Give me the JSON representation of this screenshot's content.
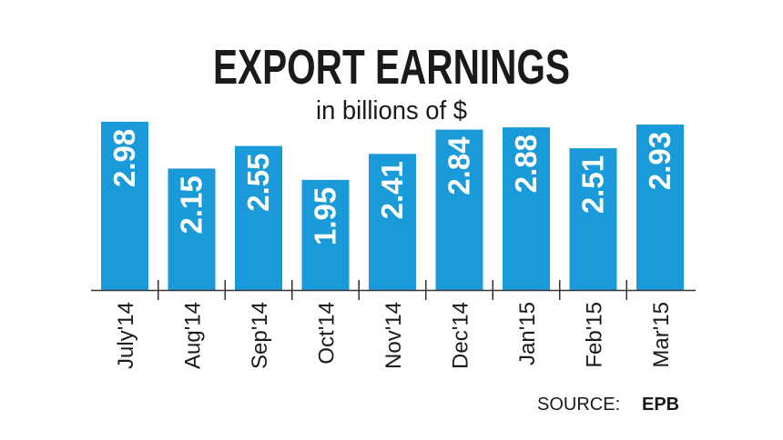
{
  "chart_data": {
    "type": "bar",
    "title": "EXPORT EARNINGS",
    "subtitle": "in billions of $",
    "categories": [
      "July'14",
      "Aug'14",
      "Sep'14",
      "Oct'14",
      "Nov'14",
      "Dec'14",
      "Jan'15",
      "Feb'15",
      "Mar'15"
    ],
    "values": [
      2.98,
      2.15,
      2.55,
      1.95,
      2.41,
      2.84,
      2.88,
      2.51,
      2.93
    ],
    "value_labels": [
      "2.98",
      "2.15",
      "2.55",
      "1.95",
      "2.41",
      "2.84",
      "2.88",
      "2.51",
      "2.93"
    ],
    "ylim": [
      0,
      3.3
    ],
    "grid": false,
    "bar_color": "#1a9ad9",
    "value_label_color": "#ffffff"
  },
  "source": {
    "label": "SOURCE:",
    "value": "EPB"
  }
}
